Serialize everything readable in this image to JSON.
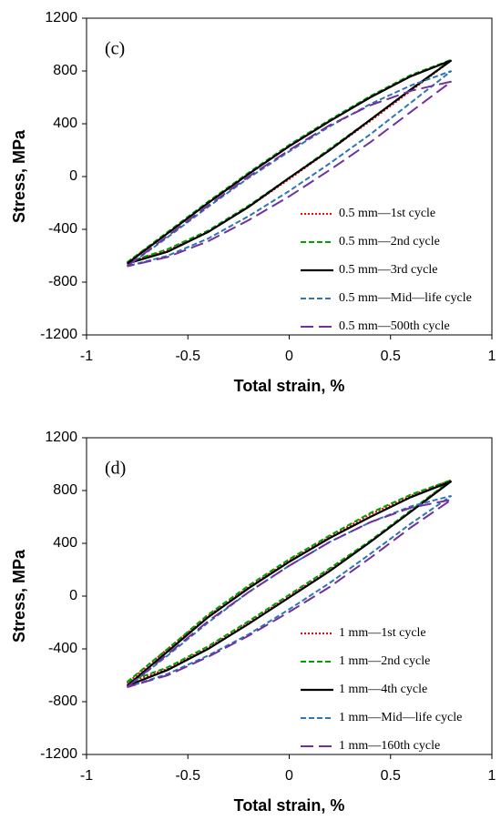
{
  "chart_data": [
    {
      "type": "line",
      "annotation": "(c)",
      "xlabel": "Total strain, %",
      "ylabel": "Stress, MPa",
      "xlim": [
        -1,
        1
      ],
      "xticks": [
        -1,
        -0.5,
        0,
        0.5,
        1
      ],
      "ylim": [
        -1200,
        1200
      ],
      "yticks": [
        -1200,
        -800,
        -400,
        0,
        400,
        800,
        1200
      ],
      "legend": "lower right",
      "x": [
        -0.8,
        -0.6,
        -0.4,
        -0.2,
        0,
        0.2,
        0.4,
        0.6,
        0.8,
        0.6,
        0.4,
        0.2,
        0,
        -0.2,
        -0.4,
        -0.6,
        -0.8
      ],
      "series": [
        {
          "name": "0.5 mm—1st cycle",
          "color": "#ff0000",
          "dash": "dotted",
          "values": [
            -650,
            -430,
            -200,
            20,
            230,
            420,
            600,
            760,
            880,
            650,
            420,
            200,
            -20,
            -230,
            -420,
            -560,
            -650
          ]
        },
        {
          "name": "0.5 mm—2nd cycle",
          "color": "#00a000",
          "dash": "dashed",
          "values": [
            -650,
            -420,
            -190,
            30,
            240,
            430,
            610,
            770,
            885,
            660,
            430,
            210,
            -10,
            -220,
            -410,
            -550,
            -650
          ]
        },
        {
          "name": "0.5 mm—3rd cycle",
          "color": "#000000",
          "dash": "solid",
          "values": [
            -660,
            -430,
            -200,
            20,
            230,
            420,
            600,
            760,
            880,
            660,
            430,
            200,
            -10,
            -230,
            -420,
            -570,
            -660
          ]
        },
        {
          "name": "0.5 mm—Mid—life cycle",
          "color": "#2e75b6",
          "dash": "dashed",
          "values": [
            -680,
            -460,
            -230,
            -10,
            190,
            380,
            550,
            690,
            800,
            560,
            320,
            100,
            -110,
            -300,
            -470,
            -600,
            -680
          ]
        },
        {
          "name": "0.5 mm—500th cycle",
          "color": "#7030a0",
          "dash": "long-dash",
          "values": [
            -680,
            -450,
            -220,
            0,
            200,
            390,
            540,
            650,
            720,
            490,
            260,
            50,
            -150,
            -330,
            -490,
            -610,
            -680
          ]
        }
      ]
    },
    {
      "type": "line",
      "annotation": "(d)",
      "xlabel": "Total strain, %",
      "ylabel": "Stress, MPa",
      "xlim": [
        -1,
        1
      ],
      "xticks": [
        -1,
        -0.5,
        0,
        0.5,
        1
      ],
      "ylim": [
        -1200,
        1200
      ],
      "yticks": [
        -1200,
        -800,
        -400,
        0,
        400,
        800,
        1200
      ],
      "legend": "lower right",
      "x": [
        -0.8,
        -0.6,
        -0.4,
        -0.2,
        0,
        0.2,
        0.4,
        0.6,
        0.8,
        0.6,
        0.4,
        0.2,
        0,
        -0.2,
        -0.4,
        -0.6,
        -0.8
      ],
      "series": [
        {
          "name": "1 mm—1st cycle",
          "color": "#ff0000",
          "dash": "dotted",
          "values": [
            -660,
            -400,
            -150,
            70,
            270,
            450,
            620,
            760,
            880,
            640,
            410,
            200,
            0,
            -200,
            -390,
            -550,
            -660
          ]
        },
        {
          "name": "1 mm—2nd cycle",
          "color": "#00a000",
          "dash": "dashed",
          "values": [
            -650,
            -400,
            -140,
            80,
            280,
            460,
            630,
            770,
            880,
            650,
            420,
            210,
            10,
            -190,
            -380,
            -540,
            -650
          ]
        },
        {
          "name": "1 mm—4th cycle",
          "color": "#000000",
          "dash": "solid",
          "values": [
            -680,
            -420,
            -160,
            60,
            260,
            440,
            600,
            750,
            870,
            640,
            410,
            190,
            -10,
            -210,
            -400,
            -560,
            -680
          ]
        },
        {
          "name": "1 mm—Mid—life cycle",
          "color": "#2e75b6",
          "dash": "dashed",
          "values": [
            -690,
            -450,
            -200,
            30,
            230,
            410,
            560,
            680,
            760,
            550,
            320,
            100,
            -100,
            -290,
            -450,
            -590,
            -690
          ]
        },
        {
          "name": "1 mm—160th cycle",
          "color": "#7030a0",
          "dash": "long-dash",
          "values": [
            -690,
            -440,
            -190,
            30,
            230,
            410,
            560,
            670,
            730,
            520,
            290,
            70,
            -120,
            -300,
            -460,
            -600,
            -690
          ]
        }
      ]
    }
  ]
}
